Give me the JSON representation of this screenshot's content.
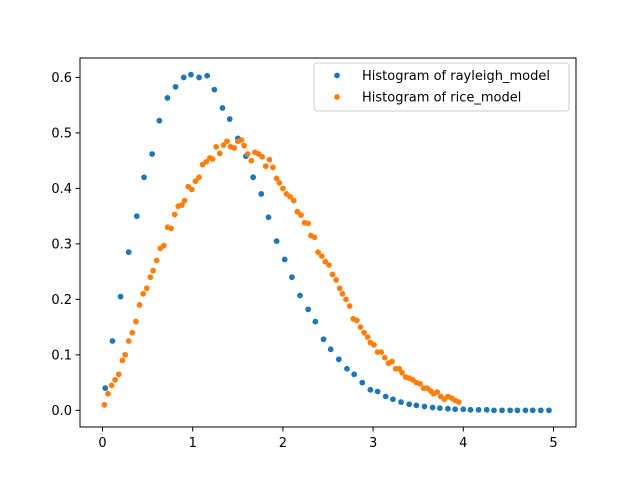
{
  "chart_data": {
    "type": "scatter",
    "title": "",
    "xlabel": "",
    "ylabel": "",
    "xlim": [
      -0.25,
      5.25
    ],
    "ylim": [
      -0.03,
      0.635
    ],
    "xticks": [
      0,
      1,
      2,
      3,
      4,
      5
    ],
    "xtick_labels": [
      "0",
      "1",
      "2",
      "3",
      "4",
      "5"
    ],
    "yticks": [
      0.0,
      0.1,
      0.2,
      0.3,
      0.4,
      0.5,
      0.6
    ],
    "ytick_labels": [
      "0.0",
      "0.1",
      "0.2",
      "0.3",
      "0.4",
      "0.5",
      "0.6"
    ],
    "grid": false,
    "legend_position": "top-right",
    "series": [
      {
        "name": "Histogram of rayleigh_model",
        "color": "#1f77b4",
        "points": [
          [
            0.03,
            0.04
          ],
          [
            0.11,
            0.125
          ],
          [
            0.2,
            0.205
          ],
          [
            0.29,
            0.285
          ],
          [
            0.38,
            0.35
          ],
          [
            0.46,
            0.42
          ],
          [
            0.55,
            0.462
          ],
          [
            0.63,
            0.522
          ],
          [
            0.72,
            0.563
          ],
          [
            0.81,
            0.583
          ],
          [
            0.9,
            0.6
          ],
          [
            0.98,
            0.605
          ],
          [
            1.07,
            0.6
          ],
          [
            1.16,
            0.603
          ],
          [
            1.24,
            0.578
          ],
          [
            1.33,
            0.545
          ],
          [
            1.41,
            0.525
          ],
          [
            1.5,
            0.49
          ],
          [
            1.59,
            0.458
          ],
          [
            1.67,
            0.42
          ],
          [
            1.76,
            0.39
          ],
          [
            1.84,
            0.348
          ],
          [
            1.93,
            0.305
          ],
          [
            2.02,
            0.272
          ],
          [
            2.1,
            0.24
          ],
          [
            2.19,
            0.207
          ],
          [
            2.28,
            0.182
          ],
          [
            2.36,
            0.16
          ],
          [
            2.45,
            0.128
          ],
          [
            2.53,
            0.11
          ],
          [
            2.62,
            0.092
          ],
          [
            2.71,
            0.075
          ],
          [
            2.79,
            0.065
          ],
          [
            2.88,
            0.05
          ],
          [
            2.97,
            0.037
          ],
          [
            3.05,
            0.034
          ],
          [
            3.14,
            0.025
          ],
          [
            3.22,
            0.02
          ],
          [
            3.31,
            0.015
          ],
          [
            3.4,
            0.011
          ],
          [
            3.48,
            0.009
          ],
          [
            3.57,
            0.007
          ],
          [
            3.66,
            0.005
          ],
          [
            3.74,
            0.004
          ],
          [
            3.83,
            0.003
          ],
          [
            3.91,
            0.002
          ],
          [
            4.0,
            0.002
          ],
          [
            4.08,
            0.001
          ],
          [
            4.17,
            0.001
          ],
          [
            4.26,
            0.001
          ],
          [
            4.34,
            0.0
          ],
          [
            4.43,
            0.0
          ],
          [
            4.52,
            0.0
          ],
          [
            4.6,
            0.0
          ],
          [
            4.69,
            0.0
          ],
          [
            4.77,
            0.0
          ],
          [
            4.86,
            0.0
          ],
          [
            4.95,
            0.0
          ]
        ]
      },
      {
        "name": "Histogram of rice_model",
        "color": "#ff7f0e",
        "points": [
          [
            0.02,
            0.01
          ],
          [
            0.06,
            0.03
          ],
          [
            0.1,
            0.045
          ],
          [
            0.14,
            0.055
          ],
          [
            0.18,
            0.065
          ],
          [
            0.22,
            0.09
          ],
          [
            0.25,
            0.1
          ],
          [
            0.29,
            0.125
          ],
          [
            0.33,
            0.14
          ],
          [
            0.37,
            0.16
          ],
          [
            0.41,
            0.19
          ],
          [
            0.45,
            0.21
          ],
          [
            0.49,
            0.22
          ],
          [
            0.53,
            0.24
          ],
          [
            0.56,
            0.252
          ],
          [
            0.6,
            0.27
          ],
          [
            0.64,
            0.292
          ],
          [
            0.68,
            0.297
          ],
          [
            0.72,
            0.33
          ],
          [
            0.76,
            0.328
          ],
          [
            0.8,
            0.353
          ],
          [
            0.84,
            0.368
          ],
          [
            0.88,
            0.37
          ],
          [
            0.91,
            0.378
          ],
          [
            0.95,
            0.403
          ],
          [
            0.99,
            0.398
          ],
          [
            1.03,
            0.413
          ],
          [
            1.07,
            0.42
          ],
          [
            1.11,
            0.443
          ],
          [
            1.15,
            0.448
          ],
          [
            1.19,
            0.455
          ],
          [
            1.22,
            0.453
          ],
          [
            1.26,
            0.475
          ],
          [
            1.3,
            0.463
          ],
          [
            1.34,
            0.478
          ],
          [
            1.38,
            0.485
          ],
          [
            1.42,
            0.475
          ],
          [
            1.46,
            0.473
          ],
          [
            1.5,
            0.485
          ],
          [
            1.54,
            0.487
          ],
          [
            1.57,
            0.477
          ],
          [
            1.61,
            0.462
          ],
          [
            1.65,
            0.45
          ],
          [
            1.69,
            0.465
          ],
          [
            1.73,
            0.462
          ],
          [
            1.77,
            0.457
          ],
          [
            1.81,
            0.44
          ],
          [
            1.85,
            0.452
          ],
          [
            1.89,
            0.438
          ],
          [
            1.93,
            0.418
          ],
          [
            1.96,
            0.41
          ],
          [
            2.0,
            0.4
          ],
          [
            2.04,
            0.39
          ],
          [
            2.08,
            0.385
          ],
          [
            2.12,
            0.378
          ],
          [
            2.16,
            0.358
          ],
          [
            2.2,
            0.352
          ],
          [
            2.24,
            0.338
          ],
          [
            2.28,
            0.337
          ],
          [
            2.31,
            0.315
          ],
          [
            2.35,
            0.312
          ],
          [
            2.39,
            0.285
          ],
          [
            2.43,
            0.278
          ],
          [
            2.47,
            0.268
          ],
          [
            2.51,
            0.262
          ],
          [
            2.55,
            0.245
          ],
          [
            2.59,
            0.235
          ],
          [
            2.63,
            0.22
          ],
          [
            2.66,
            0.21
          ],
          [
            2.7,
            0.2
          ],
          [
            2.74,
            0.188
          ],
          [
            2.78,
            0.165
          ],
          [
            2.82,
            0.162
          ],
          [
            2.86,
            0.15
          ],
          [
            2.9,
            0.14
          ],
          [
            2.94,
            0.132
          ],
          [
            2.97,
            0.122
          ],
          [
            3.01,
            0.118
          ],
          [
            3.05,
            0.105
          ],
          [
            3.09,
            0.105
          ],
          [
            3.13,
            0.095
          ],
          [
            3.17,
            0.085
          ],
          [
            3.21,
            0.088
          ],
          [
            3.25,
            0.075
          ],
          [
            3.29,
            0.075
          ],
          [
            3.32,
            0.068
          ],
          [
            3.36,
            0.06
          ],
          [
            3.4,
            0.058
          ],
          [
            3.44,
            0.055
          ],
          [
            3.48,
            0.05
          ],
          [
            3.52,
            0.048
          ],
          [
            3.56,
            0.04
          ],
          [
            3.6,
            0.04
          ],
          [
            3.64,
            0.035
          ],
          [
            3.67,
            0.03
          ],
          [
            3.71,
            0.033
          ],
          [
            3.75,
            0.025
          ],
          [
            3.79,
            0.02
          ],
          [
            3.83,
            0.025
          ],
          [
            3.87,
            0.022
          ],
          [
            3.91,
            0.018
          ],
          [
            3.95,
            0.015
          ]
        ]
      }
    ]
  }
}
